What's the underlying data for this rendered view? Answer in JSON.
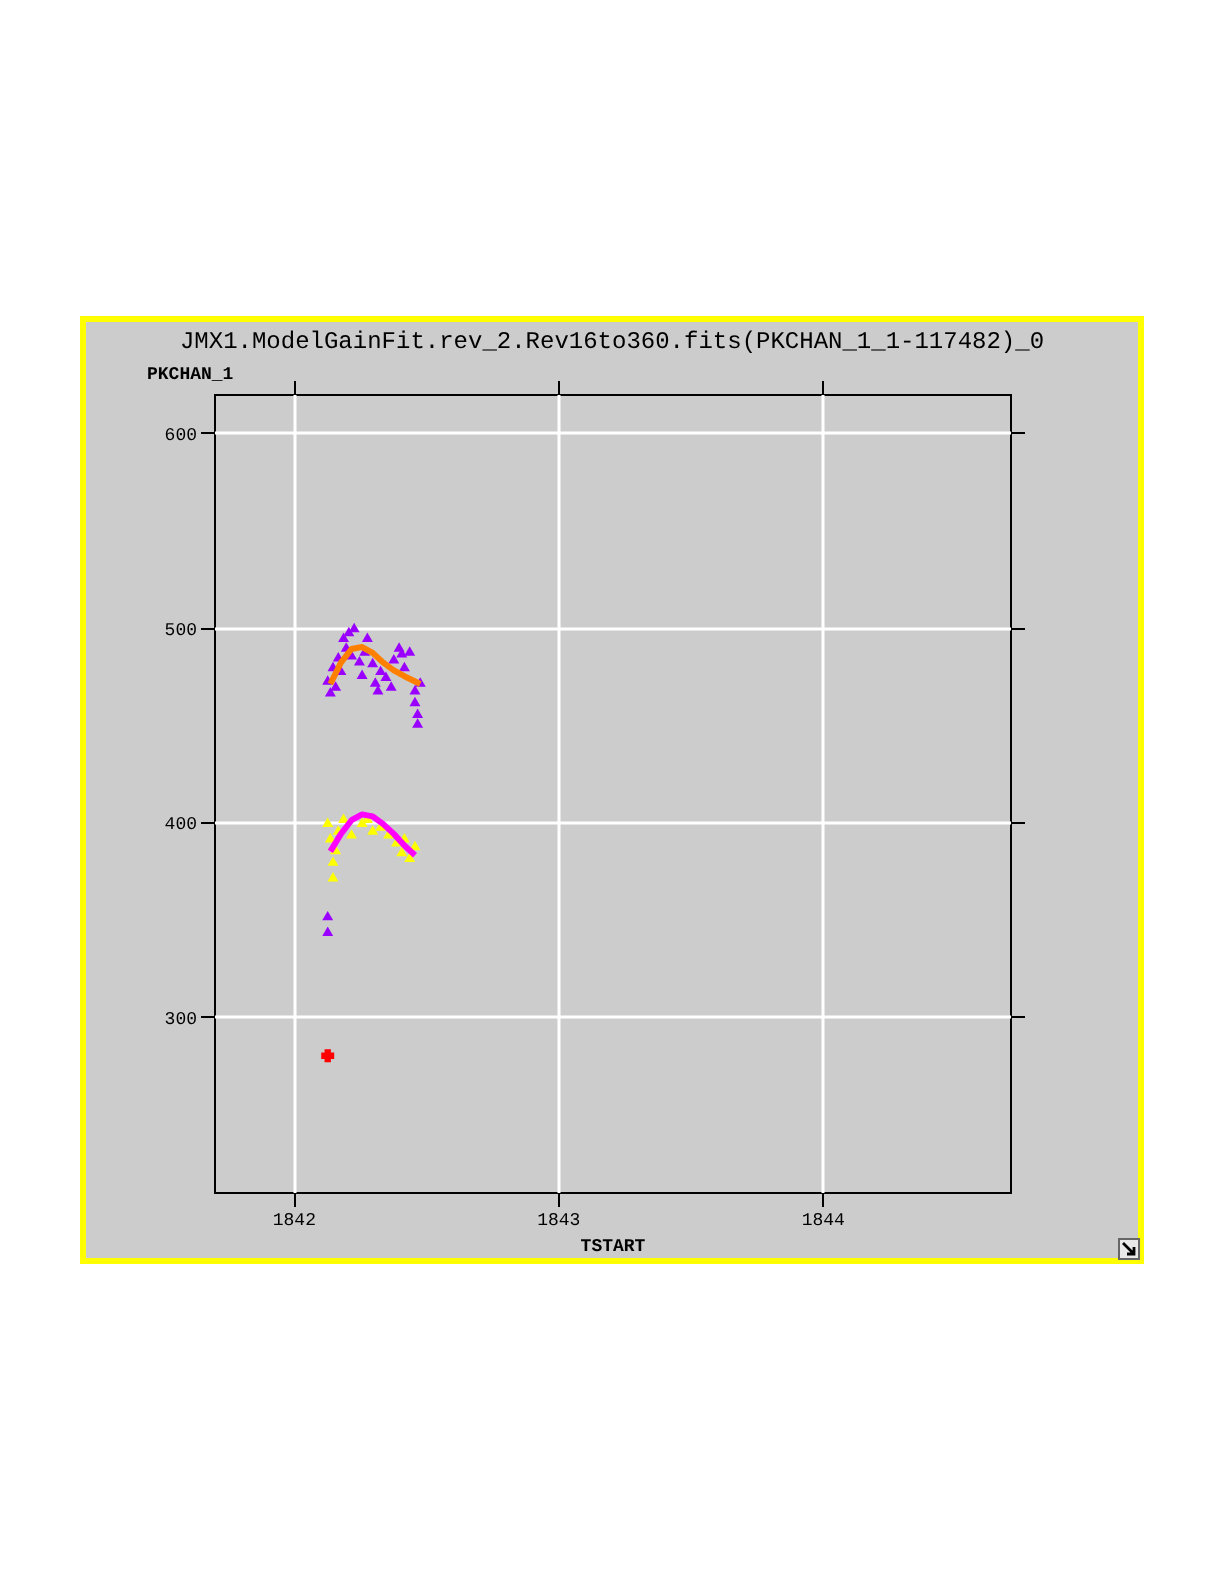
{
  "chart_data": {
    "type": "scatter",
    "title": "JMX1.ModelGainFit.rev_2.Rev16to360.fits(PKCHAN_1_1-117482)_0",
    "xlabel": "TSTART",
    "ylabel": "PKCHAN_1",
    "xlim": [
      1841.7,
      1844.71
    ],
    "xticks": [
      1842,
      1843,
      1844
    ],
    "ylim": [
      210,
      620
    ],
    "yticks": [
      300,
      400,
      500,
      600
    ],
    "grid": true,
    "series": [
      {
        "color": "#9900ff",
        "marker": "triangle",
        "x": [
          1842.13,
          1842.14,
          1842.15,
          1842.16,
          1842.17,
          1842.18,
          1842.19,
          1842.2,
          1842.21,
          1842.22,
          1842.23,
          1842.24,
          1842.25,
          1842.26,
          1842.27,
          1842.28,
          1842.3,
          1842.31,
          1842.32,
          1842.33,
          1842.35,
          1842.37,
          1842.38,
          1842.4,
          1842.41,
          1842.42,
          1842.44,
          1842.45,
          1842.46,
          1842.46,
          1842.47,
          1842.47,
          1842.48,
          1842.13,
          1842.13
        ],
        "values": [
          473,
          467,
          480,
          470,
          485,
          478,
          495,
          490,
          498,
          486,
          500,
          null,
          483,
          476,
          488,
          495,
          482,
          472,
          468,
          478,
          475,
          470,
          484,
          490,
          487,
          480,
          488,
          null,
          468,
          462,
          456,
          451,
          472,
          352,
          344
        ]
      },
      {
        "color": "#ffff00",
        "marker": "triangle",
        "x": [
          1842.13,
          1842.14,
          1842.15,
          1842.15,
          1842.16,
          1842.17,
          1842.19,
          1842.2,
          1842.22,
          1842.24,
          1842.26,
          1842.28,
          1842.3,
          1842.33,
          1842.36,
          1842.39,
          1842.41,
          1842.42,
          1842.44,
          1842.46
        ],
        "values": [
          400,
          392,
          380,
          372,
          386,
          396,
          402,
          null,
          394,
          null,
          400,
          402,
          396,
          398,
          394,
          390,
          385,
          392,
          382,
          388
        ]
      },
      {
        "color": "#ff0000",
        "marker": "cross",
        "x": [
          1842.13
        ],
        "values": [
          280
        ]
      },
      {
        "type": "line",
        "color": "#ff8000",
        "x": [
          1842.14,
          1842.18,
          1842.22,
          1842.26,
          1842.3,
          1842.34,
          1842.38,
          1842.42,
          1842.48
        ],
        "values": [
          471,
          482,
          489,
          490,
          487,
          482,
          478,
          475,
          471
        ]
      },
      {
        "type": "line",
        "color": "#ff00ff",
        "x": [
          1842.14,
          1842.18,
          1842.22,
          1842.26,
          1842.3,
          1842.34,
          1842.38,
          1842.42,
          1842.46
        ],
        "values": [
          385,
          394,
          401,
          404,
          403,
          399,
          394,
          388,
          383
        ]
      }
    ]
  }
}
